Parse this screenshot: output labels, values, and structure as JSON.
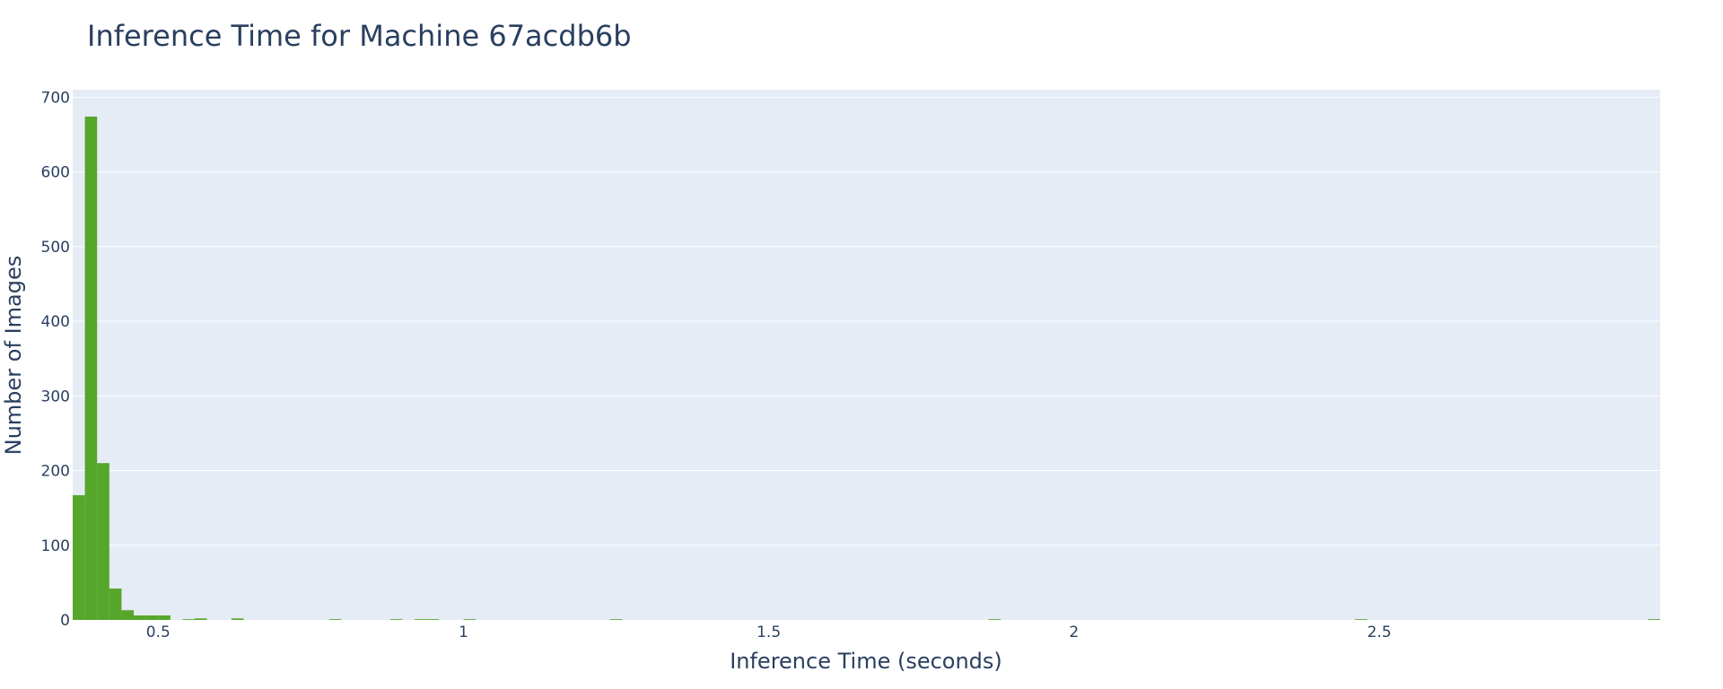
{
  "chart_data": {
    "type": "bar",
    "subtype": "histogram",
    "title": "Inference Time for Machine 67acdb6b",
    "xlabel": "Inference Time (seconds)",
    "ylabel": "Number of Images",
    "xlim": [
      0.36,
      2.96
    ],
    "ylim": [
      0,
      710
    ],
    "bin_width": 0.02,
    "x_ticks": [
      0.5,
      1,
      1.5,
      2,
      2.5
    ],
    "x_tick_labels": [
      "0.5",
      "1",
      "1.5",
      "2",
      "2.5"
    ],
    "y_ticks": [
      0,
      100,
      200,
      300,
      400,
      500,
      600,
      700
    ],
    "y_tick_labels": [
      "0",
      "100",
      "200",
      "300",
      "400",
      "500",
      "600",
      "700"
    ],
    "grid": true,
    "legend": "none",
    "colors": {
      "bar": "#56a62b",
      "plot_bg": "#e5ecf6",
      "grid": "#ffffff",
      "text": "#2a3f5f"
    },
    "bins": [
      {
        "x0": 0.36,
        "x1": 0.38,
        "count": 167
      },
      {
        "x0": 0.38,
        "x1": 0.4,
        "count": 674
      },
      {
        "x0": 0.4,
        "x1": 0.42,
        "count": 210
      },
      {
        "x0": 0.42,
        "x1": 0.44,
        "count": 42
      },
      {
        "x0": 0.44,
        "x1": 0.46,
        "count": 13
      },
      {
        "x0": 0.46,
        "x1": 0.48,
        "count": 6
      },
      {
        "x0": 0.48,
        "x1": 0.5,
        "count": 6
      },
      {
        "x0": 0.5,
        "x1": 0.52,
        "count": 6
      },
      {
        "x0": 0.54,
        "x1": 0.56,
        "count": 1
      },
      {
        "x0": 0.56,
        "x1": 0.58,
        "count": 2
      },
      {
        "x0": 0.62,
        "x1": 0.64,
        "count": 2
      },
      {
        "x0": 0.78,
        "x1": 0.8,
        "count": 1
      },
      {
        "x0": 0.88,
        "x1": 0.9,
        "count": 1
      },
      {
        "x0": 0.92,
        "x1": 0.94,
        "count": 1
      },
      {
        "x0": 0.94,
        "x1": 0.96,
        "count": 1
      },
      {
        "x0": 1.0,
        "x1": 1.02,
        "count": 1
      },
      {
        "x0": 1.24,
        "x1": 1.26,
        "count": 1
      },
      {
        "x0": 1.86,
        "x1": 1.88,
        "count": 1
      },
      {
        "x0": 2.46,
        "x1": 2.48,
        "count": 1
      },
      {
        "x0": 2.94,
        "x1": 2.96,
        "count": 1
      }
    ]
  }
}
